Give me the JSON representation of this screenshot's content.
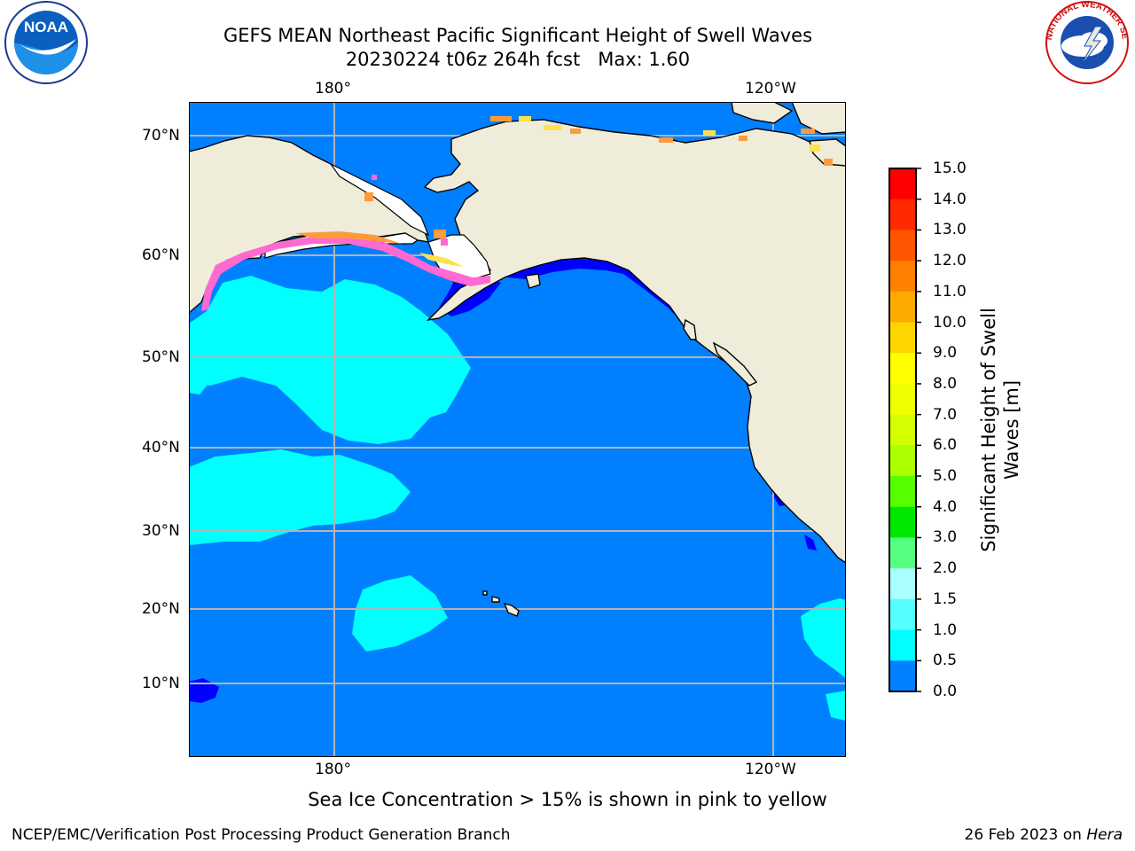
{
  "title_line1": "GEFS MEAN Northeast Pacific Significant Height of Swell Waves",
  "title_line2": "20230224 t06z 264h fcst   Max: 1.60",
  "lon_labels": [
    "180°",
    "120°W"
  ],
  "lat_labels": [
    "70°N",
    "60°N",
    "50°N",
    "40°N",
    "30°N",
    "20°N",
    "10°N"
  ],
  "colorbar": {
    "label_line1": "Significant Height of Swell",
    "label_line2": "Waves [m]",
    "ticks": [
      "15.0",
      "14.0",
      "13.0",
      "12.0",
      "11.0",
      "10.0",
      "9.0",
      "8.0",
      "7.0",
      "6.0",
      "5.0",
      "4.0",
      "3.0",
      "2.0",
      "1.5",
      "1.0",
      "0.5",
      "0.0"
    ],
    "colors": [
      "#ff0000",
      "#ff2a00",
      "#ff5500",
      "#ff8000",
      "#ffaa00",
      "#ffd500",
      "#ffff00",
      "#f0ff00",
      "#d4ff00",
      "#aaff00",
      "#55ff00",
      "#00e800",
      "#55ff80",
      "#aaffff",
      "#55ffff",
      "#00ffff",
      "#0080ff",
      "#0000ff"
    ]
  },
  "colors": {
    "land": "#efedda",
    "ocean": "#0080ff",
    "swell_high": "#00ffff",
    "swell_low": "#0000ff",
    "grid": "#b4b4b4",
    "ice_pink": "#ff69d2",
    "ice_orange": "#ff9a3c",
    "ice_yellow": "#ffe14d"
  },
  "logos": {
    "left_text": "NOAA",
    "right_ring": "NATIONAL WEATHER SERVICE"
  },
  "note": "Sea Ice Concentration > 15% is shown in pink to yellow",
  "footer_left": "NCEP/EMC/Verification Post Processing Product Generation Branch",
  "footer_date": "26 Feb 2023 on ",
  "footer_host": "Hera"
}
